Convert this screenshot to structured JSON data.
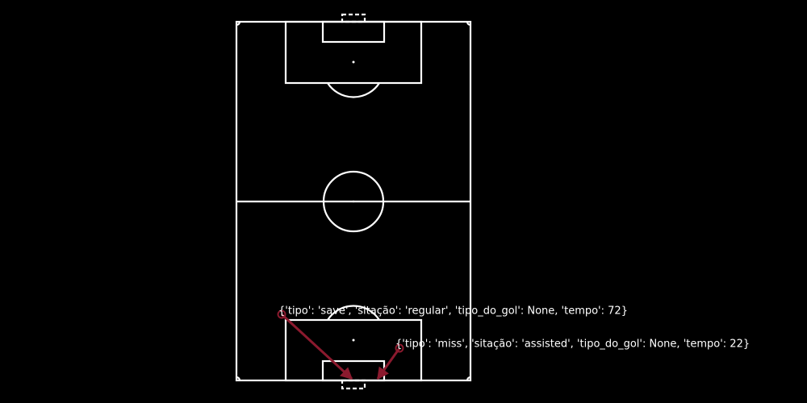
{
  "annotations": [
    {
      "text": "{'tipo': 'save', 'sitação': 'regular', 'tipo_do_gol': None, 'tempo': 72}"
    },
    {
      "text": "{'tipo': 'miss', 'sitação': 'assisted', 'tipo_do_gol': None, 'tempo': 22}"
    }
  ]
}
